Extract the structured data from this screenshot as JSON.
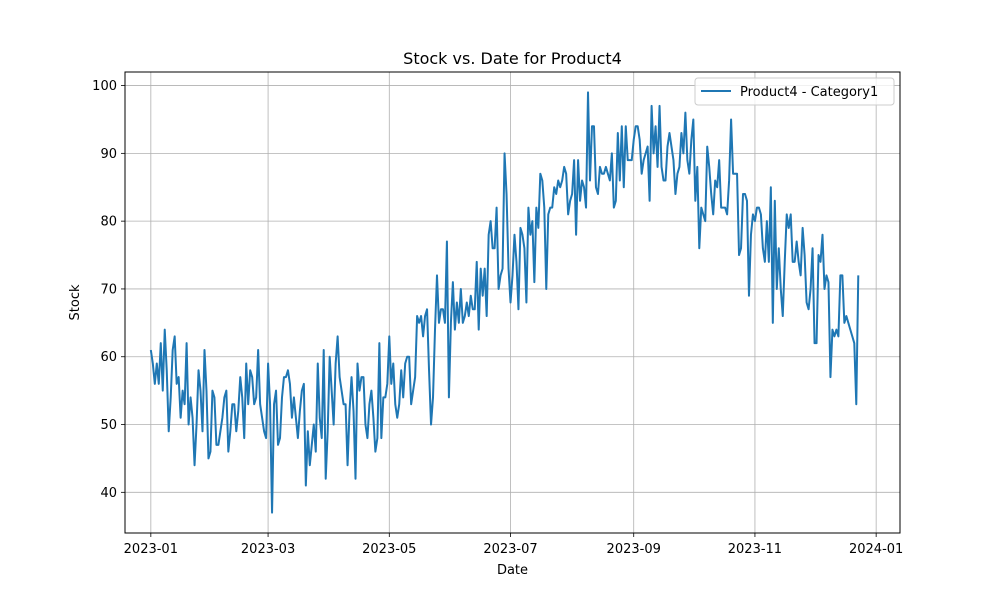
{
  "chart_data": {
    "type": "line",
    "title": "Stock vs. Date for Product4",
    "xlabel": "Date",
    "ylabel": "Stock",
    "x_start": "2023-01-01",
    "x_end": "2023-12-31",
    "xlim": [
      "2022-12-19",
      "2024-01-13"
    ],
    "ylim": [
      34,
      102
    ],
    "x_ticks": [
      "2023-01",
      "2023-03",
      "2023-05",
      "2023-07",
      "2023-09",
      "2023-11",
      "2024-01"
    ],
    "y_ticks": [
      40,
      50,
      60,
      70,
      80,
      90,
      100
    ],
    "grid": true,
    "legend_position": "top-right",
    "series": [
      {
        "name": "Product4 - Category1",
        "color": "#1f77b4",
        "values": [
          61,
          59,
          56,
          59,
          56,
          62,
          55,
          64,
          58,
          49,
          54,
          61,
          63,
          56,
          57,
          51,
          55,
          53,
          62,
          50,
          54,
          51,
          44,
          50,
          58,
          55,
          49,
          61,
          55,
          45,
          46,
          55,
          54,
          47,
          47,
          49,
          51,
          54,
          55,
          46,
          49,
          53,
          53,
          49,
          52,
          57,
          54,
          48,
          59,
          53,
          58,
          57,
          53,
          54,
          61,
          53,
          51,
          49,
          48,
          59,
          53,
          37,
          53,
          55,
          47,
          48,
          54,
          57,
          57,
          58,
          56,
          51,
          54,
          51,
          48,
          52,
          55,
          56,
          41,
          49,
          44,
          47,
          50,
          46,
          59,
          51,
          48,
          61,
          42,
          49,
          60,
          55,
          50,
          59,
          63,
          57,
          55,
          53,
          53,
          44,
          52,
          57,
          52,
          42,
          59,
          55,
          57,
          57,
          50,
          48,
          53,
          55,
          51,
          46,
          48,
          62,
          48,
          54,
          54,
          56,
          63,
          56,
          59,
          53,
          51,
          53,
          58,
          54,
          59,
          60,
          60,
          53,
          55,
          57,
          66,
          65,
          66,
          63,
          66,
          67,
          58,
          50,
          54,
          64,
          72,
          65,
          67,
          67,
          65,
          77,
          54,
          65,
          71,
          64,
          68,
          65,
          70,
          65,
          66,
          68,
          66,
          69,
          67,
          67,
          74,
          64,
          73,
          69,
          73,
          66,
          78,
          80,
          76,
          76,
          82,
          70,
          72,
          73,
          90,
          84,
          73,
          68,
          72,
          78,
          74,
          67,
          79,
          78,
          76,
          68,
          82,
          78,
          80,
          71,
          82,
          79,
          87,
          86,
          82,
          70,
          81,
          82,
          82,
          85,
          84,
          86,
          85,
          86,
          88,
          87,
          81,
          83,
          84,
          89,
          78,
          89,
          83,
          86,
          85,
          82,
          99,
          86,
          94,
          94,
          85,
          84,
          88,
          87,
          87,
          88,
          87,
          86,
          90,
          82,
          83,
          93,
          86,
          94,
          85,
          94,
          89,
          89,
          89,
          92,
          94,
          94,
          92,
          87,
          89,
          90,
          91,
          83,
          97,
          90,
          94,
          88,
          97,
          88,
          86,
          86,
          91,
          93,
          91,
          89,
          84,
          87,
          88,
          93,
          90,
          96,
          89,
          87,
          92,
          95,
          83,
          88,
          76,
          82,
          81,
          80,
          91,
          88,
          84,
          81,
          86,
          85,
          89,
          82,
          82,
          82,
          81,
          86,
          95,
          87,
          87,
          87,
          75,
          76,
          84,
          84,
          83,
          69,
          78,
          81,
          80,
          82,
          82,
          81,
          76,
          74,
          80,
          74,
          85,
          65,
          83,
          70,
          76,
          70,
          66,
          74,
          81,
          79,
          81,
          74,
          74,
          77,
          74,
          72,
          79,
          75,
          68,
          67,
          70,
          76,
          62,
          62,
          75,
          74,
          78,
          70,
          72,
          71,
          57,
          64,
          63,
          64,
          63,
          72,
          72,
          65,
          66,
          65,
          64,
          63,
          62,
          53,
          72
        ]
      }
    ]
  }
}
